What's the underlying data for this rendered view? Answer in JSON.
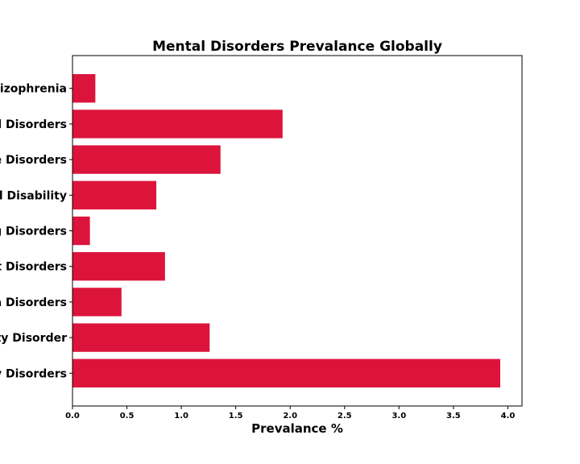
{
  "chart_data": {
    "type": "bar",
    "orientation": "horizontal",
    "title": "Mental Disorders Prevalance Globally",
    "xlabel": "Prevalance %",
    "ylabel": "",
    "categories": [
      "Schizophrenia",
      "Bipolar Disorders",
      "Substance Use Disorders",
      "Intellectual Disability",
      "Eating Disorders",
      "Conduct Disorders",
      "Autism Spectrum Disorders",
      "Attention-Deficit Hyperactivity Disorder",
      "Anxiety Disorders"
    ],
    "category_display": [
      "izophrenia",
      "d Disorders",
      "e Disorders",
      "d Disability",
      "g Disorders",
      "t Disorders",
      "n Disorders",
      "ty Disorder",
      "y Disorders"
    ],
    "values": [
      0.21,
      1.93,
      1.36,
      0.77,
      0.16,
      0.85,
      0.45,
      1.26,
      3.93
    ],
    "xlim": [
      0,
      4.13
    ],
    "xticks": [
      0.0,
      0.5,
      1.0,
      1.5,
      2.0,
      2.5,
      3.0,
      3.5,
      4.0
    ],
    "xtick_labels": [
      "0.0",
      "0.5",
      "1.0",
      "1.5",
      "2.0",
      "2.5",
      "3.0",
      "3.5",
      "4.0"
    ],
    "bar_color": "#dc143c",
    "grid": false
  }
}
